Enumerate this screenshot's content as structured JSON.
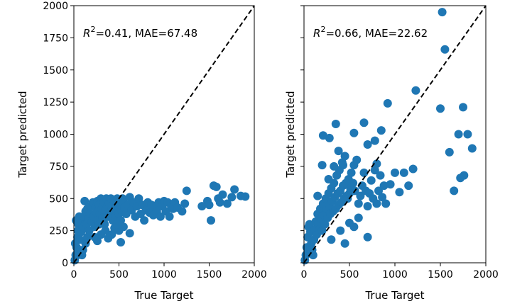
{
  "chart_data": [
    {
      "type": "scatter",
      "xlabel": "True Target",
      "ylabel": "Target predicted",
      "xlim": [
        0,
        2000
      ],
      "ylim": [
        0,
        2000
      ],
      "xticks": [
        "0",
        "500",
        "1000",
        "1500",
        "2000"
      ],
      "yticks": [
        "0",
        "250",
        "500",
        "750",
        "1000",
        "1250",
        "1500",
        "1750",
        "2000"
      ],
      "annotation": {
        "r2": "0.41",
        "rest": ", MAE=67.48"
      },
      "reference_line": "y = x (dashed)",
      "marker_color": "#1f77b4",
      "grid": false,
      "points": [
        [
          10,
          20
        ],
        [
          20,
          60
        ],
        [
          30,
          120
        ],
        [
          40,
          200
        ],
        [
          50,
          300
        ],
        [
          60,
          360
        ],
        [
          25,
          330
        ],
        [
          45,
          250
        ],
        [
          70,
          180
        ],
        [
          80,
          240
        ],
        [
          90,
          320
        ],
        [
          100,
          280
        ],
        [
          110,
          360
        ],
        [
          120,
          480
        ],
        [
          130,
          400
        ],
        [
          140,
          300
        ],
        [
          150,
          420
        ],
        [
          160,
          340
        ],
        [
          170,
          250
        ],
        [
          180,
          380
        ],
        [
          190,
          440
        ],
        [
          200,
          320
        ],
        [
          210,
          470
        ],
        [
          220,
          360
        ],
        [
          230,
          280
        ],
        [
          240,
          430
        ],
        [
          250,
          390
        ],
        [
          260,
          480
        ],
        [
          270,
          330
        ],
        [
          280,
          450
        ],
        [
          290,
          380
        ],
        [
          300,
          500
        ],
        [
          310,
          420
        ],
        [
          320,
          350
        ],
        [
          330,
          470
        ],
        [
          340,
          300
        ],
        [
          350,
          410
        ],
        [
          360,
          500
        ],
        [
          370,
          440
        ],
        [
          380,
          360
        ],
        [
          390,
          460
        ],
        [
          400,
          390
        ],
        [
          410,
          500
        ],
        [
          420,
          420
        ],
        [
          430,
          330
        ],
        [
          440,
          480
        ],
        [
          450,
          400
        ],
        [
          460,
          360
        ],
        [
          470,
          440
        ],
        [
          480,
          500
        ],
        [
          490,
          420
        ],
        [
          500,
          380
        ],
        [
          510,
          460
        ],
        [
          520,
          330
        ],
        [
          530,
          400
        ],
        [
          540,
          500
        ],
        [
          550,
          470
        ],
        [
          560,
          430
        ],
        [
          580,
          380
        ],
        [
          600,
          450
        ],
        [
          620,
          510
        ],
        [
          640,
          410
        ],
        [
          660,
          470
        ],
        [
          680,
          360
        ],
        [
          700,
          440
        ],
        [
          720,
          500
        ],
        [
          740,
          380
        ],
        [
          760,
          450
        ],
        [
          780,
          330
        ],
        [
          800,
          410
        ],
        [
          820,
          470
        ],
        [
          840,
          390
        ],
        [
          860,
          450
        ],
        [
          880,
          370
        ],
        [
          900,
          430
        ],
        [
          920,
          400
        ],
        [
          940,
          470
        ],
        [
          960,
          360
        ],
        [
          980,
          440
        ],
        [
          1000,
          480
        ],
        [
          1020,
          400
        ],
        [
          1040,
          470
        ],
        [
          1060,
          360
        ],
        [
          1080,
          440
        ],
        [
          1100,
          420
        ],
        [
          1120,
          470
        ],
        [
          1150,
          430
        ],
        [
          1200,
          400
        ],
        [
          1230,
          460
        ],
        [
          1250,
          560
        ],
        [
          1420,
          440
        ],
        [
          1480,
          480
        ],
        [
          1500,
          450
        ],
        [
          1520,
          330
        ],
        [
          1550,
          600
        ],
        [
          1580,
          590
        ],
        [
          1600,
          500
        ],
        [
          1620,
          470
        ],
        [
          1650,
          530
        ],
        [
          1700,
          460
        ],
        [
          1750,
          510
        ],
        [
          1780,
          570
        ],
        [
          1850,
          520
        ],
        [
          1900,
          515
        ],
        [
          450,
          270
        ],
        [
          420,
          220
        ],
        [
          380,
          190
        ],
        [
          350,
          250
        ],
        [
          300,
          220
        ],
        [
          260,
          170
        ],
        [
          230,
          200
        ],
        [
          550,
          280
        ],
        [
          500,
          250
        ],
        [
          620,
          230
        ],
        [
          520,
          160
        ],
        [
          480,
          300
        ],
        [
          330,
          320
        ],
        [
          280,
          300
        ],
        [
          150,
          200
        ],
        [
          130,
          150
        ],
        [
          100,
          100
        ],
        [
          90,
          60
        ],
        [
          60,
          100
        ],
        [
          40,
          60
        ],
        [
          15,
          150
        ],
        [
          35,
          320
        ]
      ]
    },
    {
      "type": "scatter",
      "xlabel": "True Target",
      "ylabel": "Target predicted",
      "xlim": [
        0,
        2000
      ],
      "ylim": [
        0,
        2000
      ],
      "xticks": [
        "0",
        "500",
        "1000",
        "1500",
        "2000"
      ],
      "yticks": [],
      "annotation": {
        "r2": "0.66",
        "rest": ", MAE=22.62"
      },
      "reference_line": "y = x (dashed)",
      "marker_color": "#1f77b4",
      "grid": false,
      "points": [
        [
          10,
          20
        ],
        [
          20,
          60
        ],
        [
          30,
          120
        ],
        [
          40,
          200
        ],
        [
          50,
          280
        ],
        [
          60,
          300
        ],
        [
          70,
          240
        ],
        [
          80,
          150
        ],
        [
          90,
          100
        ],
        [
          100,
          60
        ],
        [
          110,
          180
        ],
        [
          120,
          260
        ],
        [
          130,
          320
        ],
        [
          140,
          220
        ],
        [
          150,
          380
        ],
        [
          160,
          300
        ],
        [
          170,
          260
        ],
        [
          180,
          420
        ],
        [
          190,
          340
        ],
        [
          200,
          250
        ],
        [
          210,
          460
        ],
        [
          220,
          370
        ],
        [
          230,
          300
        ],
        [
          240,
          500
        ],
        [
          250,
          420
        ],
        [
          260,
          350
        ],
        [
          270,
          540
        ],
        [
          280,
          450
        ],
        [
          290,
          380
        ],
        [
          300,
          580
        ],
        [
          310,
          480
        ],
        [
          320,
          400
        ],
        [
          330,
          620
        ],
        [
          340,
          510
        ],
        [
          350,
          420
        ],
        [
          360,
          680
        ],
        [
          370,
          540
        ],
        [
          380,
          450
        ],
        [
          390,
          720
        ],
        [
          400,
          560
        ],
        [
          410,
          470
        ],
        [
          420,
          780
        ],
        [
          430,
          600
        ],
        [
          440,
          500
        ],
        [
          450,
          830
        ],
        [
          460,
          620
        ],
        [
          470,
          520
        ],
        [
          480,
          500
        ],
        [
          490,
          650
        ],
        [
          500,
          540
        ],
        [
          510,
          580
        ],
        [
          520,
          700
        ],
        [
          540,
          620
        ],
        [
          550,
          760
        ],
        [
          560,
          560
        ],
        [
          580,
          800
        ],
        [
          600,
          460
        ],
        [
          620,
          520
        ],
        [
          640,
          600
        ],
        [
          660,
          700
        ],
        [
          680,
          560
        ],
        [
          700,
          920
        ],
        [
          720,
          540
        ],
        [
          740,
          640
        ],
        [
          760,
          500
        ],
        [
          780,
          720
        ],
        [
          800,
          460
        ],
        [
          820,
          560
        ],
        [
          840,
          680
        ],
        [
          860,
          510
        ],
        [
          880,
          600
        ],
        [
          900,
          460
        ],
        [
          920,
          1240
        ],
        [
          950,
          610
        ],
        [
          1000,
          700
        ],
        [
          1050,
          550
        ],
        [
          1100,
          700
        ],
        [
          1150,
          600
        ],
        [
          1200,
          730
        ],
        [
          1230,
          1340
        ],
        [
          1500,
          1200
        ],
        [
          1520,
          1950
        ],
        [
          1550,
          1660
        ],
        [
          1600,
          860
        ],
        [
          1650,
          560
        ],
        [
          1700,
          1000
        ],
        [
          1720,
          660
        ],
        [
          1750,
          1210
        ],
        [
          1760,
          680
        ],
        [
          1800,
          1000
        ],
        [
          1850,
          890
        ],
        [
          350,
          1080
        ],
        [
          280,
          970
        ],
        [
          210,
          990
        ],
        [
          330,
          750
        ],
        [
          270,
          650
        ],
        [
          150,
          520
        ],
        [
          380,
          870
        ],
        [
          430,
          760
        ],
        [
          550,
          1010
        ],
        [
          660,
          1090
        ],
        [
          780,
          950
        ],
        [
          850,
          1030
        ],
        [
          700,
          440
        ],
        [
          800,
          770
        ],
        [
          200,
          760
        ],
        [
          300,
          180
        ],
        [
          400,
          250
        ],
        [
          500,
          310
        ],
        [
          450,
          150
        ],
        [
          550,
          280
        ],
        [
          700,
          200
        ],
        [
          600,
          350
        ]
      ]
    }
  ]
}
